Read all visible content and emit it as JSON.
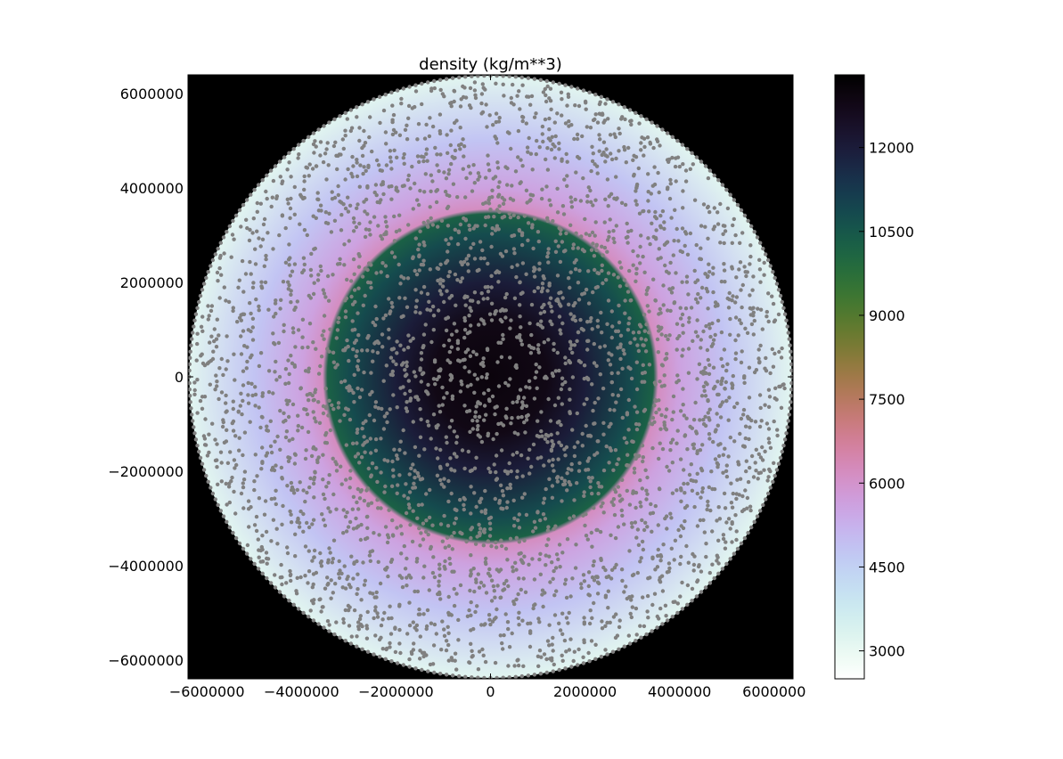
{
  "chart_data": {
    "type": "heatmap",
    "title": "density (kg/m**3)",
    "xlabel": "",
    "ylabel": "",
    "xlim": [
      -6400000,
      6400000
    ],
    "ylim": [
      -6400000,
      6400000
    ],
    "x_ticks": [
      -6000000,
      -4000000,
      -2000000,
      0,
      2000000,
      4000000,
      6000000
    ],
    "y_ticks": [
      -6000000,
      -4000000,
      -2000000,
      0,
      2000000,
      4000000,
      6000000
    ],
    "x_tick_labels": [
      "−6000000",
      "−4000000",
      "−2000000",
      "0",
      "2000000",
      "4000000",
      "6000000"
    ],
    "y_tick_labels": [
      "−6000000",
      "−4000000",
      "−2000000",
      "0",
      "2000000",
      "4000000",
      "6000000"
    ],
    "background_color": "#000000",
    "planet_radius": 6371000,
    "radial_density_profile": [
      {
        "r": 0,
        "density": 13000
      },
      {
        "r": 1200000,
        "density": 12800
      },
      {
        "r": 2000000,
        "density": 12000
      },
      {
        "r": 3000000,
        "density": 10800
      },
      {
        "r": 3450000,
        "density": 10200
      },
      {
        "r": 3550000,
        "density": 6200
      },
      {
        "r": 4000000,
        "density": 5600
      },
      {
        "r": 5000000,
        "density": 4800
      },
      {
        "r": 6371000,
        "density": 3200
      }
    ],
    "particle_marker_color": "#808080",
    "colorbar": {
      "cmap": "cubehelix_r",
      "range": [
        2500,
        13300
      ],
      "ticks": [
        3000,
        4500,
        6000,
        7500,
        9000,
        10500,
        12000
      ],
      "tick_labels": [
        "3000",
        "4500",
        "6000",
        "7500",
        "9000",
        "10500",
        "12000"
      ]
    }
  }
}
